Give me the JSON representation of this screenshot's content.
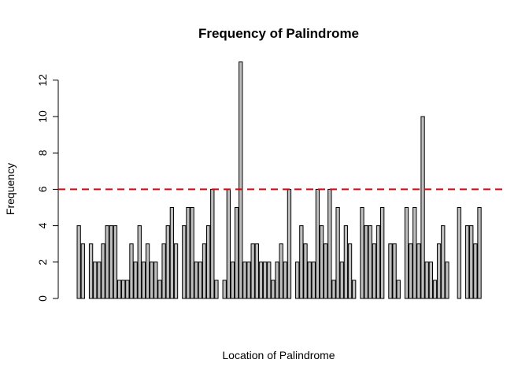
{
  "chart_data": {
    "type": "bar",
    "title": "Frequency of Palindrome",
    "xlabel": "Location of Palindrome",
    "ylabel": "Frequency",
    "ylim": [
      0,
      14
    ],
    "yticks": [
      0,
      2,
      4,
      6,
      8,
      10,
      12
    ],
    "grid": false,
    "legend": "none",
    "bar_fill": "#bebebe",
    "bar_stroke": "#000000",
    "reference_line": {
      "y": 6,
      "color": "#e3000f",
      "style": "dashed"
    },
    "values": [
      4,
      3,
      0,
      3,
      2,
      2,
      3,
      4,
      4,
      4,
      1,
      1,
      1,
      3,
      2,
      4,
      2,
      3,
      2,
      2,
      1,
      3,
      4,
      5,
      3,
      0,
      4,
      5,
      5,
      2,
      2,
      3,
      4,
      6,
      1,
      0,
      1,
      6,
      2,
      5,
      13,
      2,
      2,
      3,
      3,
      2,
      2,
      2,
      1,
      2,
      3,
      2,
      6,
      0,
      2,
      4,
      3,
      2,
      2,
      6,
      4,
      3,
      6,
      1,
      5,
      2,
      4,
      3,
      1,
      0,
      5,
      4,
      4,
      3,
      4,
      5,
      0,
      3,
      3,
      1,
      0,
      5,
      3,
      5,
      3,
      10,
      2,
      2,
      1,
      3,
      4,
      2,
      0,
      0,
      5,
      0,
      4,
      4,
      3,
      5
    ]
  }
}
